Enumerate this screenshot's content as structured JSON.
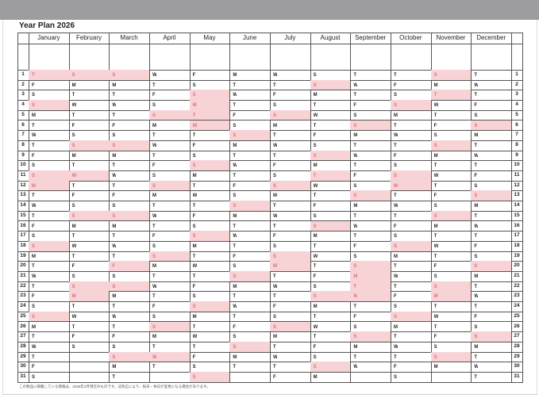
{
  "title": "Year Plan 2026",
  "colors": {
    "holiday_bg": "#f8d3d6",
    "holiday_text": "#e06c78",
    "top_bar": "#9d9d9f"
  },
  "months": [
    {
      "name": "January",
      "days": "TFSSMTWTFSSMTWTFSSMTWTFSSMTWTFS",
      "red_days": [
        1,
        4,
        11,
        12,
        18,
        25
      ]
    },
    {
      "name": "February",
      "days": "SMTWTFSSMTWTFSSMTWTFSSMTWTFS",
      "red_days": [
        1,
        8,
        11,
        15,
        22,
        23
      ]
    },
    {
      "name": "March",
      "days": "SMTWTFSSMTWTFSSMTWTFSSMTWTFSSMT",
      "red_days": [
        1,
        8,
        15,
        20,
        22,
        29
      ]
    },
    {
      "name": "April",
      "days": "WTFSSMTWTFSSMTWTFSSMTWTFSSMTWT",
      "red_days": [
        5,
        12,
        19,
        26,
        29
      ]
    },
    {
      "name": "May",
      "days": "FSSMTWTFSSMTWTFSSMTWTFSSMTWTFSS",
      "red_days": [
        3,
        4,
        5,
        6,
        10,
        17,
        24,
        31
      ]
    },
    {
      "name": "June",
      "days": "MTWTFSSMTWTFSSMTWTFSSMTWTFSSMT",
      "red_days": [
        7,
        14,
        21,
        28
      ]
    },
    {
      "name": "July",
      "days": "WTFSSMTWTFSSMTWTFSSMTWTFSSMTWTF",
      "red_days": [
        5,
        12,
        19,
        20,
        26
      ]
    },
    {
      "name": "August",
      "days": "SSMTWTFSSMTWTFSSMTWTFSSMTWTFSSM",
      "red_days": [
        2,
        9,
        11,
        16,
        23,
        30
      ]
    },
    {
      "name": "September",
      "days": "TWTFSSMTWTFSSMTWTFSSMTWTFSSMTW",
      "red_days": [
        6,
        13,
        20,
        21,
        22,
        23,
        27
      ]
    },
    {
      "name": "October",
      "days": "TFSSMTWTFSSMTWTFSSMTWTFSSMTWTFS",
      "red_days": [
        4,
        11,
        12,
        18,
        25
      ]
    },
    {
      "name": "November",
      "days": "SMTWTFSSMTWTFSSMTWTFSSMTWTFSSM",
      "red_days": [
        1,
        3,
        8,
        15,
        22,
        23,
        29
      ]
    },
    {
      "name": "December",
      "days": "TWTFSSMTWTFSSMTWTFSSMTWTFSSMTWT",
      "red_days": [
        6,
        13,
        20,
        27
      ]
    }
  ],
  "footnote": "この製品に掲載している情報は、2025年2月現在のものです。法改正により、祝日・休日が変更になる場合があります。"
}
